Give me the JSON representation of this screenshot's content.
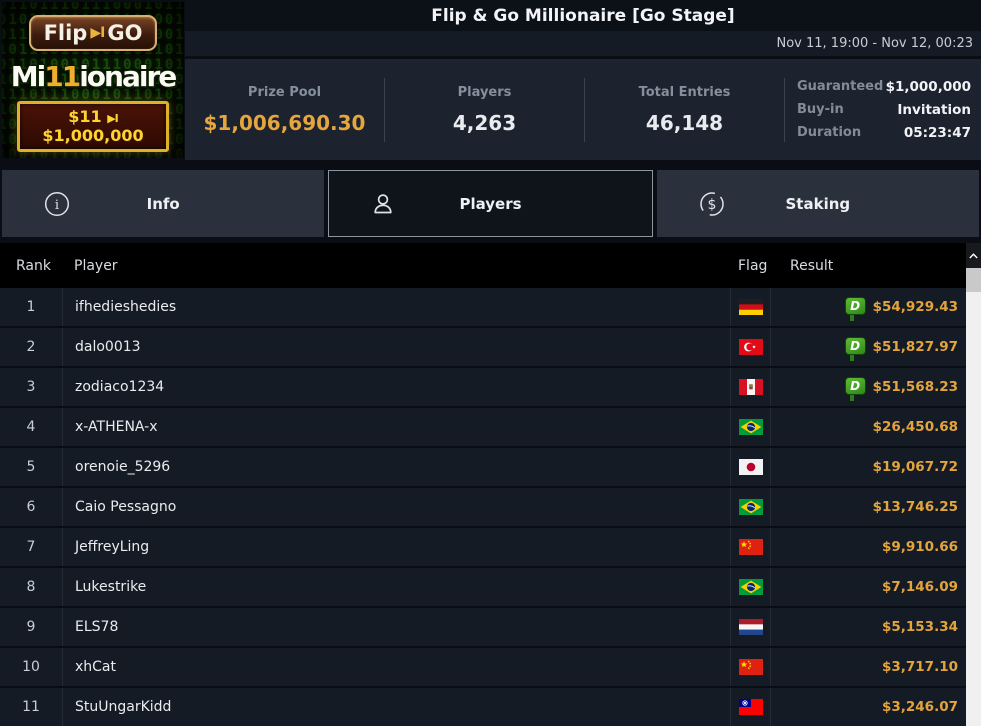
{
  "promo": {
    "flip": "Flip",
    "arrow": "▶I",
    "go": "GO",
    "mi": "Mi",
    "eleven": "11",
    "naire": "ionaire",
    "buyin": "$11",
    "prize_arrow": "▶I",
    "prize": "$1,000,000"
  },
  "header": {
    "title": "Flip & Go Millionaire [Go Stage]",
    "date_range": "Nov 11, 19:00 - Nov 12, 00:23"
  },
  "stats": [
    {
      "label": "Prize Pool",
      "value": "$1,006,690.30"
    },
    {
      "label": "Players",
      "value": "4,263"
    },
    {
      "label": "Total Entries",
      "value": "46,148"
    }
  ],
  "details": [
    {
      "label": "Guaranteed",
      "value": "$1,000,000"
    },
    {
      "label": "Buy-in",
      "value": "Invitation"
    },
    {
      "label": "Duration",
      "value": "05:23:47"
    }
  ],
  "tabs": [
    {
      "label": "Info",
      "selected": false
    },
    {
      "label": "Players",
      "selected": true
    },
    {
      "label": "Staking",
      "selected": false
    }
  ],
  "table": {
    "columns": [
      "Rank",
      "Player",
      "Flag",
      "Result"
    ],
    "badge_letter": "D",
    "rows": [
      {
        "rank": "1",
        "player": "ifhedieshedies",
        "flag": "germany",
        "result": "$54,929.43",
        "day2_badge": true
      },
      {
        "rank": "2",
        "player": "dalo0013",
        "flag": "turkey",
        "result": "$51,827.97",
        "day2_badge": true
      },
      {
        "rank": "3",
        "player": "zodiaco1234",
        "flag": "peru",
        "result": "$51,568.23",
        "day2_badge": true
      },
      {
        "rank": "4",
        "player": "x-ATHENA-x",
        "flag": "brazil",
        "result": "$26,450.68",
        "day2_badge": false
      },
      {
        "rank": "5",
        "player": "orenoie_5296",
        "flag": "japan",
        "result": "$19,067.72",
        "day2_badge": false
      },
      {
        "rank": "6",
        "player": "Caio Pessagno",
        "flag": "brazil",
        "result": "$13,746.25",
        "day2_badge": false
      },
      {
        "rank": "7",
        "player": "JeffreyLing",
        "flag": "china",
        "result": "$9,910.66",
        "day2_badge": false
      },
      {
        "rank": "8",
        "player": "Lukestrike",
        "flag": "brazil",
        "result": "$7,146.09",
        "day2_badge": false
      },
      {
        "rank": "9",
        "player": "ELS78",
        "flag": "netherlands",
        "result": "$5,153.34",
        "day2_badge": false
      },
      {
        "rank": "10",
        "player": "xhCat",
        "flag": "china",
        "result": "$3,717.10",
        "day2_badge": false
      },
      {
        "rank": "11",
        "player": "StuUngarKidd",
        "flag": "taiwan",
        "result": "$3,246.07",
        "day2_badge": false
      }
    ]
  },
  "colors": {
    "gold": "#e3a43e",
    "badge_green": "#3f9b26",
    "row_bg": "#151b24"
  }
}
